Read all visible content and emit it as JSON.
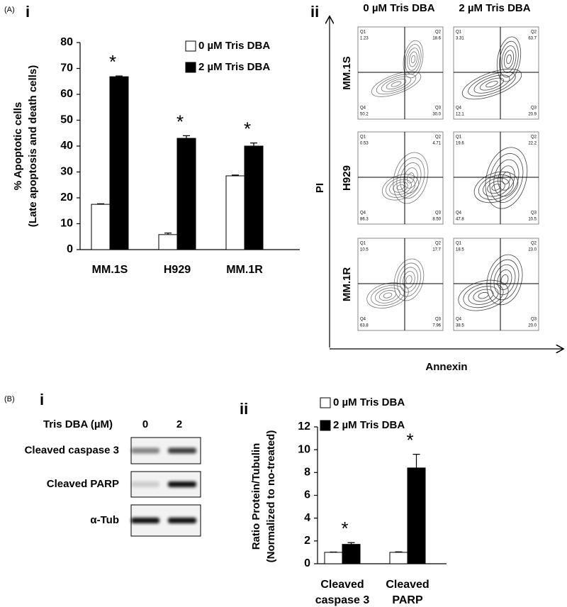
{
  "panel_labels": {
    "a": "(A)",
    "a_i": "i",
    "a_ii": "ii",
    "b": "(B)",
    "b_i": "i",
    "b_ii": "ii"
  },
  "chart_data": [
    {
      "type": "bar",
      "ylabel": [
        "% Apoptotic cells",
        "(Late apoptosis and death cells)"
      ],
      "categories": [
        [
          "MM.1S"
        ],
        [
          "H929"
        ],
        [
          "MM.1R"
        ]
      ],
      "series": [
        {
          "name": "0 µM Tris DBA",
          "color": "#ffffff",
          "values": [
            17.5,
            5.8,
            28.5
          ],
          "errors": [
            0.2,
            0.6,
            0.3
          ]
        },
        {
          "name": "2 µM Tris DBA",
          "color": "#000000",
          "values": [
            66.8,
            43,
            40
          ],
          "errors": [
            0.3,
            1.0,
            1.2
          ]
        }
      ],
      "annotations": [
        "*",
        "*",
        "*"
      ],
      "ylim": [
        0,
        80
      ],
      "yticks": [
        0,
        10,
        20,
        30,
        40,
        50,
        60,
        70,
        80
      ]
    },
    {
      "type": "bar",
      "ylabel": [
        "Ratio Protein/Tubulin",
        "(Normalized to no-treated)"
      ],
      "categories": [
        [
          "Cleaved",
          "caspase 3"
        ],
        [
          "Cleaved",
          "PARP"
        ]
      ],
      "series": [
        {
          "name": "0 µM Tris DBA",
          "color": "#ffffff",
          "values": [
            1,
            1
          ],
          "errors": [
            0.03,
            0.04
          ]
        },
        {
          "name": "2 µM Tris DBA",
          "color": "#000000",
          "values": [
            1.7,
            8.4
          ],
          "errors": [
            0.15,
            1.2
          ]
        }
      ],
      "annotations": [
        "*",
        "*"
      ],
      "ylim": [
        0,
        12
      ],
      "yticks": [
        0,
        2,
        4,
        6,
        8,
        10,
        12
      ]
    }
  ],
  "flow": {
    "columns": [
      "0 µM Tris DBA",
      "2 µM Tris DBA"
    ],
    "rows": [
      "MM.1S",
      "H929",
      "MM.1R"
    ],
    "ylabel": "PI",
    "xlabel": "Annexin",
    "quadrant_names": [
      "Q1",
      "Q2",
      "Q3",
      "Q4"
    ],
    "plots": [
      [
        [
          "1.23",
          "18.6",
          "30.0",
          "50.2"
        ],
        [
          "3.31",
          "63.7",
          "20.9",
          "12.1"
        ]
      ],
      [
        [
          "0.53",
          "4.71",
          "8.50",
          "86.3"
        ],
        [
          "19.6",
          "22.2",
          "10.5",
          "47.8"
        ]
      ],
      [
        [
          "10.5",
          "17.7",
          "7.96",
          "63.8"
        ],
        [
          "18.5",
          "23.0",
          "20.0",
          "38.5"
        ]
      ]
    ]
  },
  "blot": {
    "header": "Tris DBA (µM)",
    "lanes": [
      "0",
      "2"
    ],
    "rows": [
      "Cleaved caspase 3",
      "Cleaved PARP",
      "α-Tub"
    ]
  }
}
